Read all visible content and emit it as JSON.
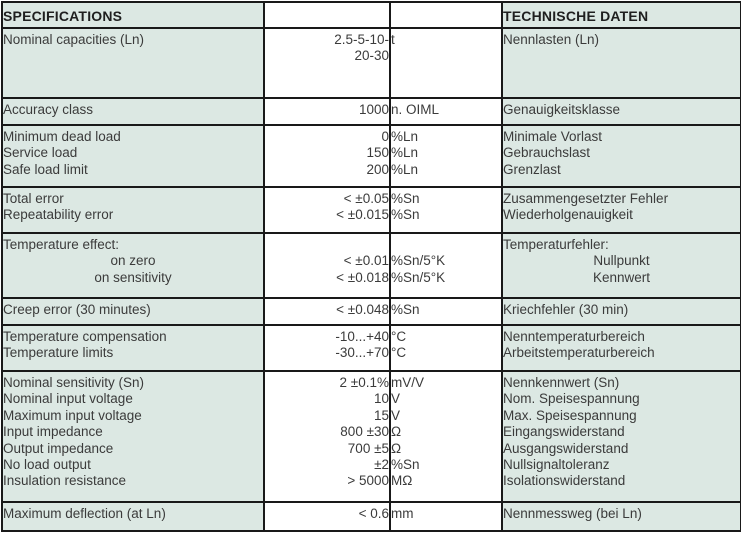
{
  "table": {
    "header": {
      "en": "SPECIFICATIONS",
      "de": "TECHNISCHE DATEN"
    },
    "colors": {
      "label_cell_background": "#dce8e3",
      "value_cell_background": "#ffffff",
      "border": "#191919",
      "body_text": "#3b3b3b",
      "header_text": "#1f1f1f"
    },
    "rows": [
      {
        "height": 70,
        "lines": [
          {
            "en": "Nominal capacities (Ln)",
            "value": "2.5-5-10-",
            "unit": "t",
            "de": "Nennlasten (Ln)"
          },
          {
            "value": "20-30"
          }
        ]
      },
      {
        "height": 27,
        "lines": [
          {
            "en": "Accuracy class",
            "value": "1000",
            "unit": "n. OIML",
            "de": "Genauigkeitsklasse"
          }
        ]
      },
      {
        "height": 62,
        "lines": [
          {
            "en": "Minimum dead load",
            "value": "0",
            "unit": "%Ln",
            "de": "Minimale Vorlast"
          },
          {
            "en": "Service load",
            "value": "150",
            "unit": "%Ln",
            "de": "Gebrauchslast"
          },
          {
            "en": "Safe load limit",
            "value": "200",
            "unit": "%Ln",
            "de": "Grenzlast"
          }
        ]
      },
      {
        "height": 46,
        "lines": [
          {
            "en": "Total error",
            "value": "< ±0.05",
            "unit": "%Sn",
            "de": "Zusammengesetzter Fehler"
          },
          {
            "en": "Repeatability error",
            "value": "< ±0.015",
            "unit": "%Sn",
            "de": "Wiederholgenauigkeit"
          }
        ]
      },
      {
        "height": 65,
        "lines": [
          {
            "en": "Temperature effect:",
            "de": "Temperaturfehler:"
          },
          {
            "en": "on zero",
            "en_align": "center",
            "value": "< ±0.01",
            "unit": "%Sn/5°K",
            "de": "Nullpunkt",
            "de_align": "center"
          },
          {
            "en": "on sensitivity",
            "en_align": "center",
            "value": "< ±0.018",
            "unit": "%Sn/5°K",
            "de": "Kennwert",
            "de_align": "center"
          }
        ]
      },
      {
        "height": 27,
        "lines": [
          {
            "en": "Creep error (30 minutes)",
            "value": "< ±0.048",
            "unit": "%Sn",
            "de": "Kriechfehler (30 min)"
          }
        ]
      },
      {
        "height": 46,
        "lines": [
          {
            "en": "Temperature compensation",
            "value": "-10...+40",
            "unit": "°C",
            "de": "Nenntemperaturbereich"
          },
          {
            "en": "Temperature limits",
            "value": "-30...+70",
            "unit": "°C",
            "de": "Arbeitstemperaturbereich"
          }
        ]
      },
      {
        "height": 131,
        "lines": [
          {
            "en": "Nominal sensitivity (Sn)",
            "value": "2 ±0.1%",
            "unit": "mV/V",
            "de": "Nennkennwert (Sn)"
          },
          {
            "en": "Nominal input voltage",
            "value": "10",
            "unit": "V",
            "de": "Nom. Speisespannung"
          },
          {
            "en": "Maximum input voltage",
            "value": "15",
            "unit": "V",
            "de": "Max. Speisespannung"
          },
          {
            "en": "Input impedance",
            "value": "800 ±30",
            "unit": "Ω",
            "de": "Eingangswiderstand"
          },
          {
            "en": "Output impedance",
            "value": "700 ±5",
            "unit": "Ω",
            "de": "Ausgangswiderstand"
          },
          {
            "en": "No load output",
            "value": "±2",
            "unit": "%Sn",
            "de": "Nullsignaltoleranz"
          },
          {
            "en": "Insulation resistance",
            "value": "> 5000",
            "unit": "MΩ",
            "de": "Isolationswiderstand"
          }
        ]
      },
      {
        "height": 29,
        "lines": [
          {
            "en": "Maximum deflection (at Ln)",
            "value": "< 0.6",
            "unit": "mm",
            "de": "Nennmessweg (bei Ln)"
          }
        ]
      }
    ]
  }
}
